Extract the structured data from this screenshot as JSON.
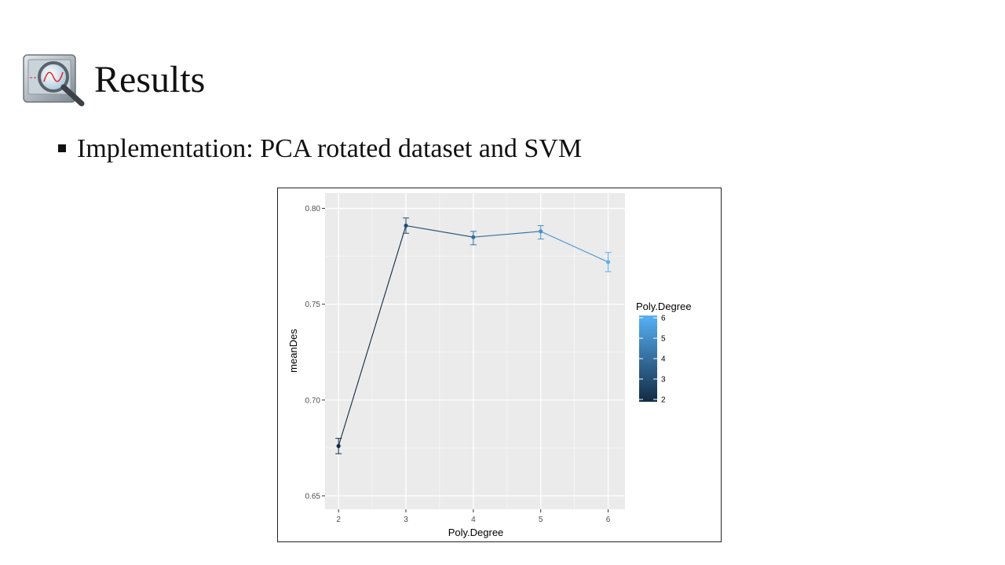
{
  "slide": {
    "title": "Results",
    "bullet": "Implementation:  PCA rotated dataset and SVM"
  },
  "chart_data": {
    "type": "line",
    "xlabel": "Poly.Degree",
    "ylabel": "meanDes",
    "x": [
      2,
      3,
      4,
      5,
      6
    ],
    "y": [
      0.676,
      0.791,
      0.785,
      0.788,
      0.772
    ],
    "error_low": [
      0.672,
      0.787,
      0.781,
      0.784,
      0.767
    ],
    "error_high": [
      0.68,
      0.795,
      0.788,
      0.791,
      0.777
    ],
    "xlim": [
      1.8,
      6.25
    ],
    "ylim": [
      0.643,
      0.808
    ],
    "x_ticks": [
      "2",
      "3",
      "4",
      "5",
      "6"
    ],
    "y_ticks": [
      "0.65",
      "0.70",
      "0.75",
      "0.80"
    ],
    "y_tick_values": [
      0.65,
      0.7,
      0.75,
      0.8
    ],
    "legend": {
      "title": "Poly.Degree",
      "labels": [
        "6",
        "5",
        "4",
        "3",
        "2"
      ],
      "position": "right",
      "color_low": "#132b43",
      "color_high": "#56b1f7"
    },
    "grid": true,
    "panel_color": "#ebebeb"
  }
}
